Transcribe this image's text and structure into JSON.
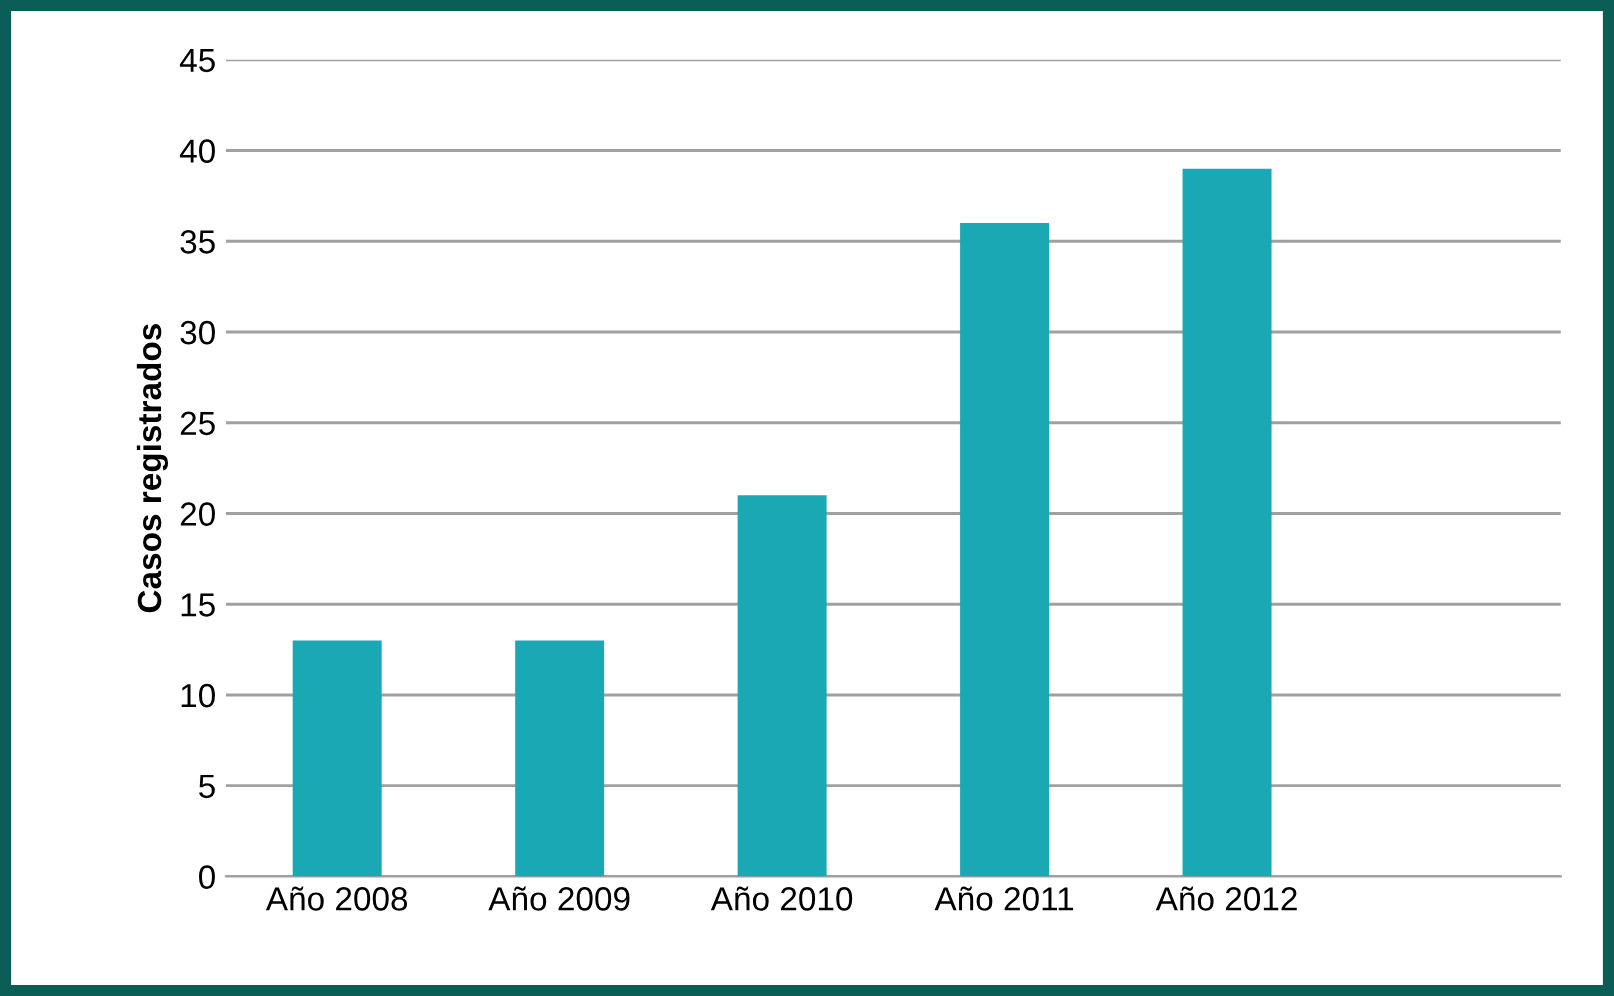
{
  "chart_data": {
    "type": "bar",
    "ylabel": "Casos registrados",
    "categories": [
      "Año 2008",
      "Año 2009",
      "Año 2010",
      "Año 2011",
      "Año 2012",
      null
    ],
    "values": [
      13,
      13,
      21,
      36,
      39,
      null
    ],
    "color": "#1aa9b4",
    "ylim": [
      0,
      45
    ],
    "yticks": [
      0,
      5,
      10,
      15,
      20,
      25,
      30,
      35,
      40,
      45
    ],
    "grid": "y",
    "legend": false
  }
}
